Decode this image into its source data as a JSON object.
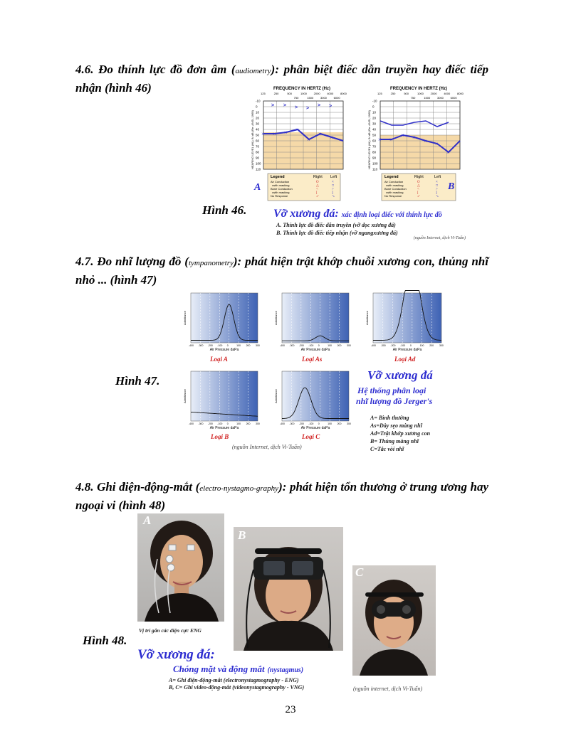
{
  "s46": {
    "heading_a": "4.6. Đo thính lực đồ đơn âm (",
    "heading_small": "audiometry",
    "heading_b": "): phân biệt điếc dẫn truyền hay điếc tiếp nhận (hình 46)",
    "fig_label": "Hình 46.",
    "freq_title": "FREQUENCY IN HERTZ (Hz)",
    "freq_top": [
      "125",
      "250",
      "500",
      "1000",
      "2000",
      "4000",
      "8000"
    ],
    "freq_bot": [
      "750",
      "1500",
      "3000",
      "6000"
    ],
    "y_title": "HEARING LEVEL (HL) IN dB (Re: ANSI, 1969)",
    "y_ticks": [
      "-10",
      "0",
      "10",
      "20",
      "30",
      "40",
      "50",
      "60",
      "70",
      "80",
      "90",
      "100",
      "110"
    ],
    "legend": {
      "title": "Legend",
      "right": "Right",
      "left": "Left",
      "rows": [
        "Air Conduction",
        "•with masking",
        "Bone Conduction",
        "•with masking",
        "No Response"
      ]
    },
    "label_a": "A",
    "label_b": "B",
    "caption_title": "Vỡ xương đá:",
    "caption_sub": "xác định loại điếc với thính lực đồ",
    "caption_a": "A. Thính lực đồ điếc dẫn truyền (vỡ dọc xương đá)",
    "caption_b": "B. Thính lực đồ điếc tiếp nhận (vỡ ngangxương đá)",
    "source": "(nguồn Internet, dịch Vi-Tuấn)"
  },
  "s47": {
    "heading_a": "4.7. Đo nhĩ lượng đồ (",
    "heading_small": "tympanometry",
    "heading_b": "): phát hiện trật khớp chuỗi xương con, thủng nhĩ nhỏ ... (hình 47)",
    "fig_label": "Hình 47.",
    "x_axis": "Air Pressure daPa",
    "y_axis": "Admittance",
    "ticks": [
      "-400",
      "-300",
      "-200",
      "-100",
      "0",
      "100",
      "200",
      "300"
    ],
    "chart_labels": [
      "Loại A",
      "Loại As",
      "Loại Ad",
      "Loại B",
      "Loại C"
    ],
    "caption_title": "Vỡ xương đá",
    "caption_sub1": "Hệ thống phân loại",
    "caption_sub2": "nhĩ lượng đồ Jerger's",
    "caption_items": [
      "A= Bình thường",
      "As=Dày sẹo màng nhĩ",
      "Ad=Trật khớp xương con",
      "B= Thủng màng nhĩ",
      "C=Tắc vòi nhĩ"
    ],
    "source": "(nguồn Internet, dịch Vi-Tuấn)"
  },
  "s48": {
    "heading_a": "4.8. Ghi điện-động-mắt (",
    "heading_small": "electro-nystagmo-graphy",
    "heading_b": "): phát hiện tổn thương ở trung ương hay ngoại vi (hình 48)",
    "fig_label": "Hình 48.",
    "photo_labels": [
      "A",
      "B",
      "C"
    ],
    "photo_a_caption": "Vị trí gắn các điện cực ENG",
    "caption_title": "Vỡ xương đá:",
    "caption_sub": "Chóng mặt và động mắt",
    "caption_sub_small": "(nystagmus)",
    "caption_a": "A= Ghi điện-động-mắt (electronystagmography - ENG)",
    "caption_b": "B, C= Ghi video-động-mắt (videonystagmography - VNG)",
    "source": "(nguồn internet, dịch Vi-Tuấn)"
  },
  "page_number": "23"
}
